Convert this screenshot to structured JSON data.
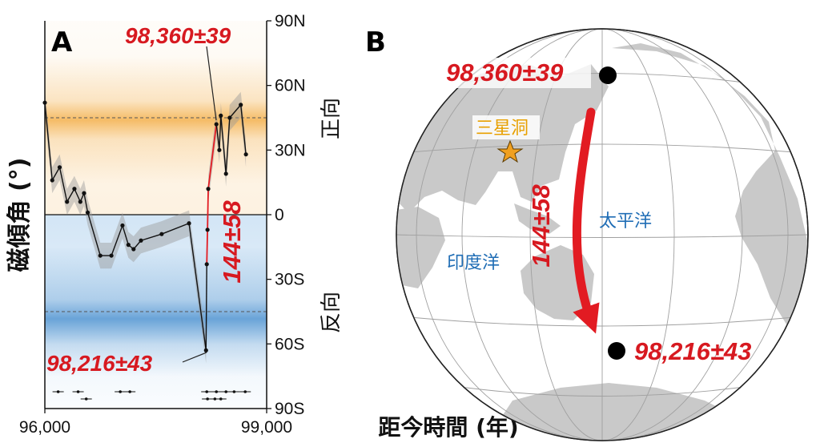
{
  "panel_a": {
    "label": "A",
    "y_axis_label": "磁傾角 (°)",
    "x_axis_label": "距今時間 (年)",
    "normal_label": "正向",
    "reverse_label": "反向",
    "onset_annotation": "98,360±39",
    "end_annotation": "98,216±43",
    "duration_annotation": "144±58"
  },
  "chart_data": {
    "type": "line",
    "xlim": [
      96000,
      99000
    ],
    "ylim": [
      -90,
      90
    ],
    "x_ticks": [
      {
        "value": 96000,
        "label": "96,000"
      },
      {
        "value": 99000,
        "label": "99,000"
      }
    ],
    "y_ticks": [
      {
        "value": 90,
        "label": "90N"
      },
      {
        "value": 60,
        "label": "60N"
      },
      {
        "value": 30,
        "label": "30N"
      },
      {
        "value": 0,
        "label": "0"
      },
      {
        "value": -30,
        "label": "30S"
      },
      {
        "value": -60,
        "label": "60S"
      },
      {
        "value": -90,
        "label": "90S"
      }
    ],
    "reference_lines": [
      45,
      -45
    ],
    "zero_line": 0,
    "series": [
      {
        "points": [
          {
            "x": 96000,
            "y": 52
          },
          {
            "x": 96100,
            "y": 16
          },
          {
            "x": 96200,
            "y": 22
          },
          {
            "x": 96300,
            "y": 6
          },
          {
            "x": 96400,
            "y": 12
          },
          {
            "x": 96480,
            "y": 6
          },
          {
            "x": 96530,
            "y": 10
          },
          {
            "x": 96580,
            "y": 1
          },
          {
            "x": 96750,
            "y": -19
          },
          {
            "x": 96900,
            "y": -19
          },
          {
            "x": 97050,
            "y": -5
          },
          {
            "x": 97130,
            "y": -14
          },
          {
            "x": 97200,
            "y": -16
          },
          {
            "x": 97300,
            "y": -12
          },
          {
            "x": 97580,
            "y": -9
          },
          {
            "x": 97950,
            "y": -4
          },
          {
            "x": 98180,
            "y": -63
          },
          {
            "x": 98190,
            "y": -23
          },
          {
            "x": 98200,
            "y": -7
          },
          {
            "x": 98210,
            "y": 12
          },
          {
            "x": 98320,
            "y": 42
          },
          {
            "x": 98360,
            "y": 30
          },
          {
            "x": 98380,
            "y": 46
          },
          {
            "x": 98450,
            "y": 19
          },
          {
            "x": 98500,
            "y": 45
          },
          {
            "x": 98650,
            "y": 51
          },
          {
            "x": 98720,
            "y": 28
          }
        ]
      }
    ],
    "transition": {
      "start": 98216,
      "end": 98360,
      "duration": 144
    }
  },
  "panel_b": {
    "label": "B",
    "start_pole_label": "98,360±39",
    "end_pole_label": "98,216±43",
    "path_duration": "144±58",
    "site_label": "三星洞",
    "indian_ocean_label": "印度洋",
    "pacific_ocean_label": "太平洋",
    "colors": {
      "path": "#e21b22",
      "site_star": "#f0a020",
      "land": "#c9c9c9",
      "ocean": "#ffffff"
    }
  }
}
